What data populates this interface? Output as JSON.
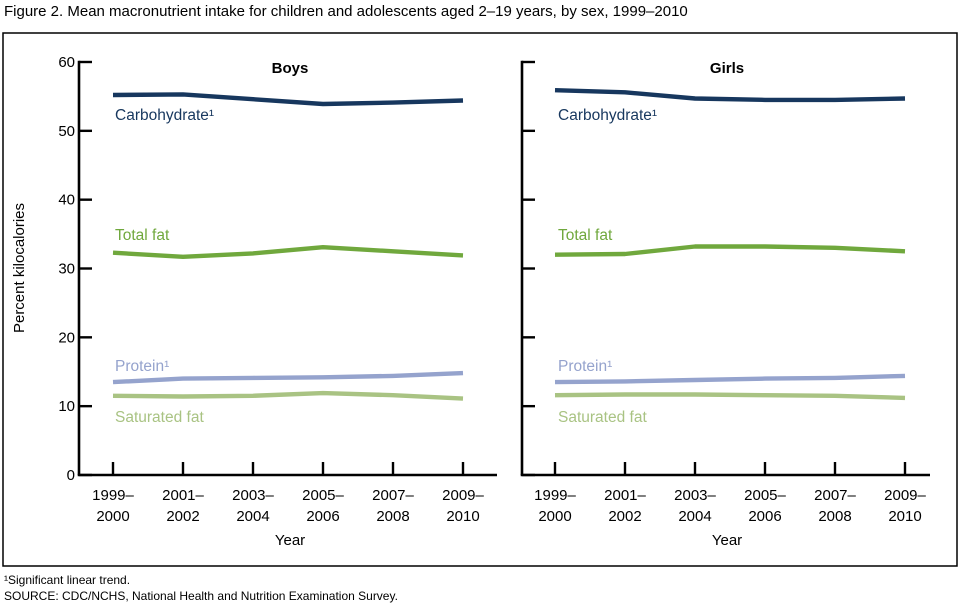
{
  "title": "Figure 2. Mean macronutrient intake for children and adolescents aged 2–19 years, by sex, 1999–2010",
  "y_axis": {
    "label": "Percent kilocalories",
    "ticks": [
      60,
      50,
      40,
      30,
      20,
      10,
      0
    ]
  },
  "x_axis": {
    "label": "Year",
    "tick_lines": [
      [
        "1999–",
        "2000"
      ],
      [
        "2001–",
        "2002"
      ],
      [
        "2003–",
        "2004"
      ],
      [
        "2005–",
        "2006"
      ],
      [
        "2007–",
        "2008"
      ],
      [
        "2009–",
        "2010"
      ]
    ]
  },
  "footnotes": [
    "¹Significant linear trend.",
    "SOURCE: CDC/NCHS, National Health and Nutrition Examination Survey."
  ],
  "colors": {
    "carbohydrate": "#17375e",
    "total_fat": "#70a83d",
    "protein": "#95a3cd",
    "saturated_fat": "#a9c383",
    "axis": "#000000"
  },
  "chart_data": {
    "type": "line",
    "categories": [
      "1999–2000",
      "2001–2002",
      "2003–2004",
      "2005–2006",
      "2007–2008",
      "2009–2010"
    ],
    "xlabel": "Year",
    "ylabel": "Percent kilocalories",
    "ylim": [
      0,
      60
    ],
    "grid": false,
    "legend_position": "inline-labels",
    "panels": [
      {
        "title": "Boys",
        "series": [
          {
            "name": "Carbohydrate¹",
            "color": "#17375e",
            "values": [
              55.2,
              55.3,
              54.6,
              53.9,
              54.1,
              54.4
            ]
          },
          {
            "name": "Total fat",
            "color": "#70a83d",
            "values": [
              32.3,
              31.7,
              32.2,
              33.1,
              32.5,
              31.9
            ]
          },
          {
            "name": "Protein¹",
            "color": "#95a3cd",
            "values": [
              13.5,
              14.0,
              14.1,
              14.2,
              14.4,
              14.8
            ]
          },
          {
            "name": "Saturated fat",
            "color": "#a9c383",
            "values": [
              11.5,
              11.4,
              11.5,
              11.9,
              11.6,
              11.1
            ]
          }
        ]
      },
      {
        "title": "Girls",
        "series": [
          {
            "name": "Carbohydrate¹",
            "color": "#17375e",
            "values": [
              55.9,
              55.6,
              54.7,
              54.5,
              54.5,
              54.7
            ]
          },
          {
            "name": "Total fat",
            "color": "#70a83d",
            "values": [
              32.0,
              32.1,
              33.2,
              33.2,
              33.0,
              32.5
            ]
          },
          {
            "name": "Protein¹",
            "color": "#95a3cd",
            "values": [
              13.5,
              13.6,
              13.8,
              14.0,
              14.1,
              14.4
            ]
          },
          {
            "name": "Saturated fat",
            "color": "#a9c383",
            "values": [
              11.6,
              11.7,
              11.7,
              11.6,
              11.5,
              11.2
            ]
          }
        ]
      }
    ]
  }
}
